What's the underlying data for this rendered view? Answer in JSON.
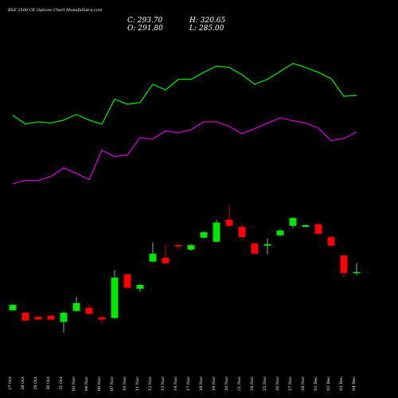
{
  "chart_data": {
    "type": "candlestick",
    "title": "BSE 2500 CE Options Chart MunafaSutra.com",
    "header": [
      "C: 293.70",
      "H: 320.65",
      "O: 291.80",
      "L: 285.00"
    ],
    "categories": [
      "27 Oct",
      "28 Oct",
      "29 Oct",
      "30 Oct",
      "31 Oct",
      "03 Nov",
      "04 Nov",
      "06 Nov",
      "07 Nov",
      "10 Nov",
      "11 Nov",
      "12 Nov",
      "13 Nov",
      "14 Nov",
      "17 Nov",
      "18 Nov",
      "19 Nov",
      "20 Nov",
      "21 Nov",
      "24 Nov",
      "25 Nov",
      "26 Nov",
      "27 Nov",
      "28 Nov",
      "01 Dec",
      "02 Dec",
      "03 Dec",
      "04 Dec"
    ],
    "open": [
      178,
      171,
      159,
      162,
      143,
      176,
      186,
      157,
      155,
      287,
      243,
      325,
      337,
      375,
      361,
      397,
      385,
      452,
      430,
      380,
      373,
      404,
      433,
      430,
      438,
      399,
      344,
      291.8
    ],
    "high": [
      195,
      174,
      159,
      164,
      174,
      219,
      194,
      162,
      299,
      289,
      258,
      383,
      378,
      378,
      378,
      416,
      450,
      493,
      438,
      382,
      395,
      423,
      459,
      438,
      440,
      401,
      346,
      320.65
    ],
    "low": [
      178,
      145,
      150,
      147,
      111,
      174,
      164,
      138,
      152,
      243,
      234,
      323,
      318,
      359,
      358,
      395,
      383,
      430,
      397,
      347,
      347,
      402,
      426,
      428,
      406,
      371,
      279,
      285
    ],
    "close": [
      195,
      147,
      150,
      150,
      171,
      200,
      167,
      150,
      277,
      246,
      255,
      349,
      320,
      371,
      375,
      414,
      443,
      433,
      399,
      349,
      378,
      419,
      457,
      435,
      409,
      373,
      291,
      293.7
    ],
    "up_color": "#00e600",
    "down_color": "#ff0000",
    "series": [
      {
        "color": "#00dd00",
        "values": [
          767,
          740,
          747,
          743,
          752,
          769,
          752,
          740,
          815,
          800,
          805,
          860,
          843,
          875,
          875,
          896,
          915,
          911,
          889,
          860,
          875,
          899,
          923,
          911,
          896,
          877,
          824,
          827
        ]
      },
      {
        "color": "#cc00cc",
        "values": [
          560,
          570,
          570,
          582,
          608,
          591,
          572,
          661,
          642,
          647,
          699,
          695,
          719,
          714,
          723,
          747,
          747,
          733,
          711,
          726,
          743,
          759,
          750,
          743,
          728,
          690,
          697,
          716
        ]
      }
    ],
    "ylim": [
      0,
      1100
    ]
  }
}
